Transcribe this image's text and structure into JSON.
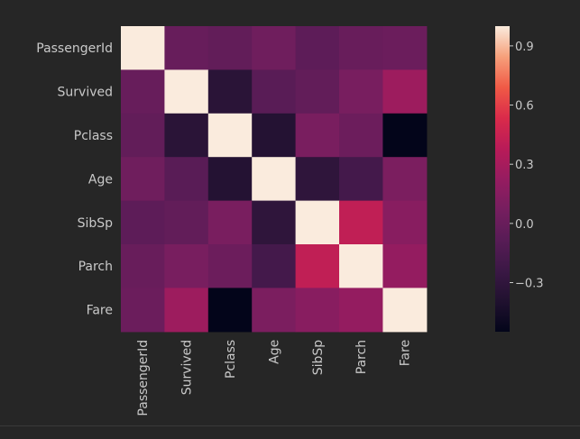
{
  "chart_data": {
    "type": "heatmap",
    "variables": [
      "PassengerId",
      "Survived",
      "Pclass",
      "Age",
      "SibSp",
      "Parch",
      "Fare"
    ],
    "values": [
      [
        1.0,
        -0.005,
        -0.035,
        0.037,
        -0.058,
        -0.002,
        0.013
      ],
      [
        -0.005,
        1.0,
        -0.338,
        -0.077,
        -0.035,
        0.082,
        0.257
      ],
      [
        -0.035,
        -0.338,
        1.0,
        -0.369,
        0.083,
        0.018,
        -0.549
      ],
      [
        0.037,
        -0.077,
        -0.369,
        1.0,
        -0.308,
        -0.189,
        0.096
      ],
      [
        -0.058,
        -0.035,
        0.083,
        -0.308,
        1.0,
        0.415,
        0.16
      ],
      [
        -0.002,
        0.082,
        0.018,
        -0.189,
        0.415,
        1.0,
        0.216
      ],
      [
        0.013,
        0.257,
        -0.549,
        0.096,
        0.16,
        0.216,
        1.0
      ]
    ],
    "vmin": -0.549,
    "vmax": 1.0,
    "colorbar_ticks": [
      0.9,
      0.6,
      0.3,
      0.0,
      -0.3
    ],
    "colorbar_tick_labels": [
      "0.9",
      "0.6",
      "0.3",
      "0.0",
      "−0.3"
    ],
    "colormap": "rocket",
    "legend": "colorbar right",
    "title": "",
    "xlabel": "",
    "ylabel": ""
  },
  "colors": {
    "background": "#262626",
    "text": "#c9c9c9"
  }
}
